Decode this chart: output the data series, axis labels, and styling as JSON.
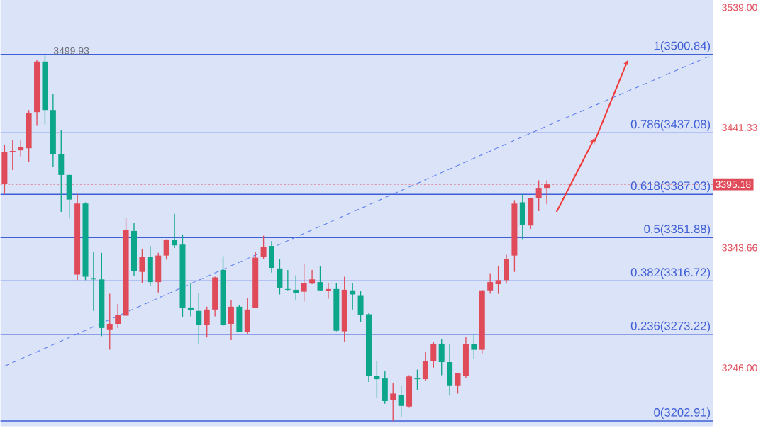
{
  "chart_data": {
    "type": "candlestick",
    "categories": [
      null,
      null,
      null,
      null,
      null,
      null,
      null,
      null,
      null,
      null,
      null,
      null,
      null,
      null,
      null,
      null,
      null,
      null,
      null,
      null,
      null,
      null,
      null,
      null,
      null,
      null,
      null,
      null,
      null,
      null,
      null,
      null,
      null,
      null,
      null,
      null,
      null,
      null,
      null,
      null,
      null,
      null,
      null,
      null,
      null,
      null,
      null,
      null,
      null,
      null,
      null,
      null,
      null,
      null,
      null,
      null,
      null,
      null,
      null,
      null,
      null,
      null,
      null,
      null,
      null,
      null,
      null,
      null,
      null,
      null,
      null,
      null,
      null,
      null,
      null,
      null,
      null,
      null,
      null,
      null,
      null,
      null,
      null,
      null,
      null,
      null,
      null,
      null
    ],
    "ohlc": [
      [
        3395.6,
        3427.3,
        3387.3,
        3421.2
      ],
      [
        3421.2,
        3431.2,
        3406.7,
        3422.3
      ],
      [
        3422.8,
        3431.2,
        3417.8,
        3425.6
      ],
      [
        3424.5,
        3455.6,
        3413.4,
        3453.4
      ],
      [
        3453.9,
        3496.1,
        3442.8,
        3495.0
      ],
      [
        3495.0,
        3499.93,
        3443.9,
        3455.6
      ],
      [
        3455.6,
        3468.4,
        3409.5,
        3419.5
      ],
      [
        3419.5,
        3439.5,
        3372.8,
        3402.8
      ],
      [
        3402.8,
        3403.4,
        3367.3,
        3382.8
      ],
      [
        3321.8,
        3387.3,
        3317.3,
        3379.5
      ],
      [
        3379.5,
        3380.6,
        3317.3,
        3320.1
      ],
      [
        3319.0,
        3340.6,
        3292.3,
        3317.9
      ],
      [
        3317.9,
        3339.5,
        3271.8,
        3278.4
      ],
      [
        3277.3,
        3306.2,
        3260.7,
        3281.8
      ],
      [
        3281.8,
        3297.9,
        3278.4,
        3289.0
      ],
      [
        3288.4,
        3367.9,
        3288.4,
        3357.9
      ],
      [
        3357.3,
        3364.0,
        3320.7,
        3324.5
      ],
      [
        3324.0,
        3342.9,
        3315.1,
        3336.2
      ],
      [
        3336.2,
        3345.1,
        3312.9,
        3315.7
      ],
      [
        3315.7,
        3339.5,
        3307.3,
        3337.3
      ],
      [
        3337.3,
        3350.6,
        3334.0,
        3350.1
      ],
      [
        3350.1,
        3371.2,
        3343.4,
        3345.6
      ],
      [
        3346.2,
        3354.5,
        3287.3,
        3295.1
      ],
      [
        3295.1,
        3315.1,
        3287.9,
        3292.9
      ],
      [
        3292.3,
        3306.8,
        3265.7,
        3281.2
      ],
      [
        3281.2,
        3295.7,
        3270.7,
        3293.4
      ],
      [
        3293.4,
        3320.1,
        3287.9,
        3319.5
      ],
      [
        3325.6,
        3336.8,
        3280.1,
        3281.2
      ],
      [
        3281.8,
        3301.2,
        3268.5,
        3295.7
      ],
      [
        3295.7,
        3297.3,
        3275.1,
        3275.1
      ],
      [
        3275.1,
        3302.9,
        3273.4,
        3293.4
      ],
      [
        3294.6,
        3340.6,
        3294.6,
        3335.6
      ],
      [
        3336.2,
        3353.4,
        3334.5,
        3344.5
      ],
      [
        3345.1,
        3349.0,
        3323.4,
        3327.3
      ],
      [
        3326.8,
        3334.5,
        3305.7,
        3311.2
      ],
      [
        3310.1,
        3325.6,
        3309.0,
        3309.5
      ],
      [
        3309.5,
        3321.2,
        3300.7,
        3306.8
      ],
      [
        3307.9,
        3330.6,
        3300.1,
        3315.1
      ],
      [
        3314.5,
        3325.6,
        3314.0,
        3317.9
      ],
      [
        3315.7,
        3328.4,
        3308.4,
        3309.0
      ],
      [
        3308.4,
        3315.1,
        3302.3,
        3310.1
      ],
      [
        3310.1,
        3315.1,
        3275.7,
        3276.2
      ],
      [
        3275.7,
        3320.1,
        3267.3,
        3309.5
      ],
      [
        3309.0,
        3315.1,
        3293.4,
        3305.7
      ],
      [
        3305.1,
        3308.4,
        3283.4,
        3289.0
      ],
      [
        3289.6,
        3290.7,
        3234.6,
        3239.6
      ],
      [
        3239.6,
        3251.8,
        3221.3,
        3236.8
      ],
      [
        3237.4,
        3243.5,
        3216.8,
        3219.0
      ],
      [
        3219.6,
        3233.5,
        3202.91,
        3225.1
      ],
      [
        3224.0,
        3231.8,
        3205.7,
        3215.1
      ],
      [
        3214.6,
        3240.1,
        3213.5,
        3239.0
      ],
      [
        3237.4,
        3244.6,
        3227.9,
        3236.8
      ],
      [
        3236.8,
        3259.0,
        3235.7,
        3251.8
      ],
      [
        3251.8,
        3267.3,
        3246.2,
        3265.7
      ],
      [
        3265.7,
        3269.6,
        3240.1,
        3250.7
      ],
      [
        3250.7,
        3265.1,
        3223.5,
        3231.8
      ],
      [
        3231.8,
        3241.8,
        3225.1,
        3241.8
      ],
      [
        3239.6,
        3271.2,
        3237.9,
        3265.1
      ],
      [
        3265.1,
        3272.9,
        3253.5,
        3260.7
      ],
      [
        3260.7,
        3309.5,
        3257.3,
        3309.0
      ],
      [
        3309.0,
        3322.9,
        3306.2,
        3315.7
      ],
      [
        3314.0,
        3329.0,
        3306.2,
        3317.3
      ],
      [
        3317.3,
        3337.9,
        3314.5,
        3334.5
      ],
      [
        3337.3,
        3382.3,
        3324.0,
        3379.5
      ],
      [
        3380.6,
        3387.3,
        3350.6,
        3362.3
      ],
      [
        3361.7,
        3384.0,
        3359.0,
        3384.0
      ],
      [
        3384.0,
        3398.4,
        3373.4,
        3392.3
      ],
      [
        3392.3,
        3398.4,
        3379.0,
        3395.18
      ],
      null,
      null,
      null,
      null,
      null,
      null,
      null,
      null,
      null,
      null,
      null,
      null,
      null,
      null,
      null,
      null,
      null,
      null,
      null,
      null
    ],
    "colors": [
      "#e04b5a",
      "#e04b5a",
      "#e04b5a",
      "#e04b5a",
      "#e04b5a",
      "#0ca68a",
      "#0ca68a",
      "#0ca68a",
      "#0ca68a",
      "#e04b5a",
      "#0ca68a",
      "#0ca68a",
      "#0ca68a",
      "#e04b5a",
      "#e04b5a",
      "#e04b5a",
      "#0ca68a",
      "#e04b5a",
      "#0ca68a",
      "#e04b5a",
      "#e04b5a",
      "#0ca68a",
      "#0ca68a",
      "#0ca68a",
      "#0ca68a",
      "#e04b5a",
      "#e04b5a",
      "#0ca68a",
      "#e04b5a",
      "#0ca68a",
      "#e04b5a",
      "#e04b5a",
      "#e04b5a",
      "#0ca68a",
      "#0ca68a",
      "#0ca68a",
      "#0ca68a",
      "#e04b5a",
      "#e04b5a",
      "#0ca68a",
      "#e04b5a",
      "#0ca68a",
      "#e04b5a",
      "#0ca68a",
      "#0ca68a",
      "#0ca68a",
      "#0ca68a",
      "#0ca68a",
      "#e04b5a",
      "#0ca68a",
      "#e04b5a",
      "#0ca68a",
      "#e04b5a",
      "#e04b5a",
      "#0ca68a",
      "#0ca68a",
      "#e04b5a",
      "#e04b5a",
      "#0ca68a",
      "#e04b5a",
      "#e04b5a",
      "#e04b5a",
      "#e04b5a",
      "#e04b5a",
      "#0ca68a",
      "#e04b5a",
      "#e04b5a",
      "#e04b5a",
      null,
      null,
      null,
      null,
      null,
      null,
      null,
      null,
      null,
      null,
      null,
      null,
      null,
      null,
      null,
      null,
      null,
      null,
      null,
      null
    ],
    "series": [
      {
        "type": "line",
        "values": [
          3247.4,
          null,
          null,
          null,
          null,
          null,
          null,
          null,
          null,
          null,
          null,
          null,
          null,
          null,
          null,
          null,
          null,
          null,
          null,
          null,
          null,
          null,
          null,
          null,
          null,
          null,
          null,
          null,
          null,
          null,
          null,
          null,
          null,
          null,
          null,
          null,
          null,
          null,
          null,
          null,
          null,
          null,
          null,
          null,
          null,
          null,
          null,
          null,
          null,
          null,
          null,
          null,
          null,
          null,
          null,
          null,
          null,
          null,
          null,
          null,
          null,
          null,
          null,
          null,
          null,
          null,
          null,
          3442.6,
          null,
          null,
          null,
          null,
          null,
          null,
          null,
          null,
          null,
          null,
          null,
          null,
          null,
          null,
          null,
          null,
          null,
          null,
          null,
          3499.1
        ],
        "color": "#5b7cf0",
        "line_style": "dashed"
      }
    ],
    "ylim": [
      3198.5,
      3545
    ],
    "yticks": [
      {
        "value": 3246,
        "label": "3246.00"
      },
      3343.66,
      3441.33,
      {
        "value": 3539,
        "label": "3539.00"
      }
    ],
    "grid": "y",
    "tick_labels": "y",
    "ref_lines": [
      {
        "axis": "y",
        "value": 3500.84,
        "label": "1(3500.84)",
        "color": "#3f5fd6",
        "line_style": "solid"
      },
      {
        "axis": "y",
        "value": 3437.08,
        "label": "0.786(3437.08)",
        "color": "#3f5fd6",
        "line_style": "solid"
      },
      {
        "axis": "y",
        "value": 3387.03,
        "label": "0.618(3387.03)",
        "color": "#3f5fd6",
        "line_style": "solid"
      },
      {
        "axis": "y",
        "value": 3351.88,
        "label": "0.5(3351.88)",
        "color": "#3f5fd6",
        "line_style": "solid"
      },
      {
        "axis": "y",
        "value": 3316.72,
        "label": "0.382(3316.72)",
        "color": "#3f5fd6",
        "line_style": "solid"
      },
      {
        "axis": "y",
        "value": 3273.22,
        "label": "0.236(3273.22)",
        "color": "#3f5fd6",
        "line_style": "solid"
      },
      {
        "axis": "y",
        "value": 3202.91,
        "label": "0(3202.91)",
        "color": "#3f5fd6",
        "line_style": "solid"
      },
      {
        "axis": "y",
        "value": 3395.18,
        "label": "3395.18",
        "color": "#e04b5a",
        "line_style": "dotted"
      }
    ],
    "annotations": [
      {
        "text": "3499.93",
        "y": 3499.93
      }
    ]
  }
}
